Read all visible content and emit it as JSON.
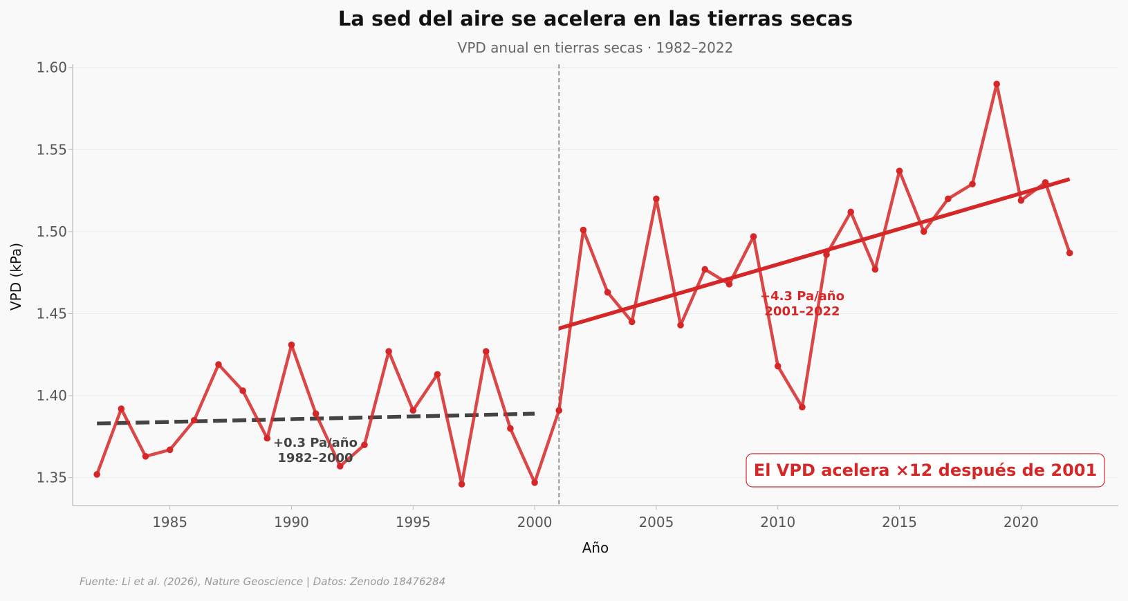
{
  "chart_data": {
    "type": "line",
    "title": "La sed del aire se acelera en las tierras secas",
    "subtitle": "VPD anual en tierras secas · 1982–2022",
    "xlabel": "Año",
    "ylabel": "VPD (kPa)",
    "xlim": [
      1981,
      2024
    ],
    "ylim": [
      1.333,
      1.602
    ],
    "x_ticks": [
      1985,
      1990,
      1995,
      2000,
      2005,
      2010,
      2015,
      2020
    ],
    "y_ticks": [
      1.35,
      1.4,
      1.45,
      1.5,
      1.55,
      1.6
    ],
    "y_tick_labels": [
      "1.35",
      "1.40",
      "1.45",
      "1.50",
      "1.55",
      "1.60"
    ],
    "grid": "horizontal",
    "series": [
      {
        "color": "#d62728",
        "x": [
          1982,
          1983,
          1984,
          1985,
          1986,
          1987,
          1988,
          1989,
          1990,
          1991,
          1992,
          1993,
          1994,
          1995,
          1996,
          1997,
          1998,
          1999,
          2000,
          2001,
          2002,
          2003,
          2004,
          2005,
          2006,
          2007,
          2008,
          2009,
          2010,
          2011,
          2012,
          2013,
          2014,
          2015,
          2016,
          2017,
          2018,
          2019,
          2020,
          2021,
          2022
        ],
        "values": [
          1.352,
          1.392,
          1.363,
          1.367,
          1.385,
          1.419,
          1.403,
          1.374,
          1.431,
          1.389,
          1.357,
          1.37,
          1.427,
          1.391,
          1.413,
          1.346,
          1.427,
          1.38,
          1.347,
          1.391,
          1.501,
          1.463,
          1.445,
          1.52,
          1.443,
          1.477,
          1.468,
          1.497,
          1.418,
          1.393,
          1.486,
          1.512,
          1.477,
          1.537,
          1.5,
          1.52,
          1.529,
          1.59,
          1.519,
          1.53,
          1.487
        ]
      }
    ],
    "trend_lines": [
      {
        "x": [
          1982,
          2000
        ],
        "y": [
          1.383,
          1.389
        ],
        "color": "#444444",
        "style": "dashed",
        "label": "+0.3 Pa/año",
        "period": "1982–2000"
      },
      {
        "x": [
          2001,
          2022
        ],
        "y": [
          1.441,
          1.532
        ],
        "color": "#d62728",
        "style": "solid",
        "label": "+4.3 Pa/año",
        "period": "2001–2022"
      }
    ],
    "breakpoint": {
      "x": 2001
    },
    "callout": "El VPD acelera ×12 después de 2001",
    "source": "Fuente: Li et al. (2026), Nature Geoscience | Datos: Zenodo 18476284"
  }
}
